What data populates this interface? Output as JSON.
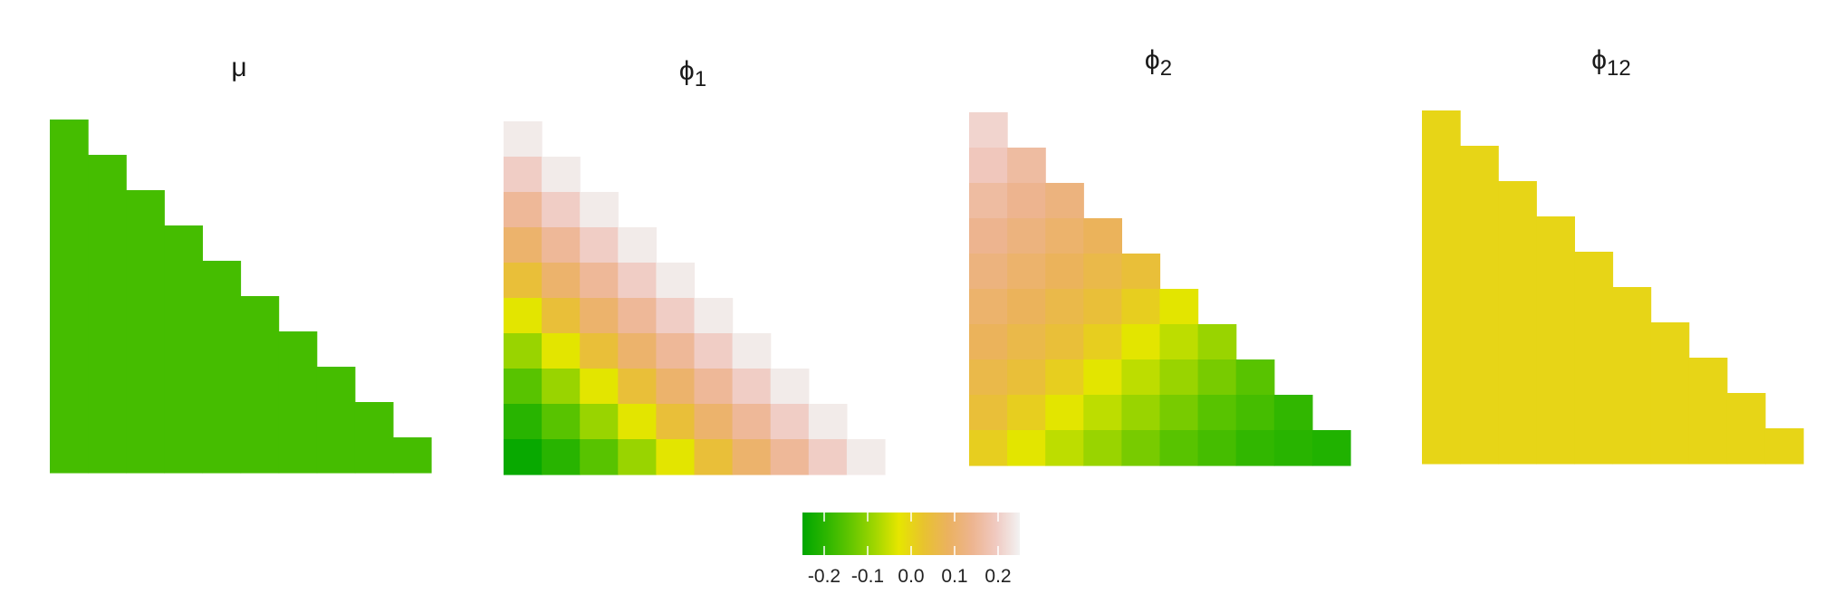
{
  "chart_data": {
    "type": "heatmap",
    "colorscale": {
      "range": [
        -0.25,
        0.25
      ],
      "tick_labels": [
        "-0.2",
        "-0.1",
        "0.0",
        "0.1",
        "0.2"
      ],
      "tick_values": [
        -0.2,
        -0.1,
        0.0,
        0.1,
        0.2
      ],
      "colors": [
        "#00A600",
        "#2DB600",
        "#63C600",
        "#A0D600",
        "#E6E600",
        "#E8C32E",
        "#EBB25E",
        "#EDB48E",
        "#F0C9C0",
        "#F2F2F2"
      ]
    },
    "panels": [
      {
        "title_base": "μ",
        "title_sub": "",
        "rows": [
          [
            -0.17
          ],
          [
            -0.17,
            -0.17
          ],
          [
            -0.17,
            -0.17,
            -0.17
          ],
          [
            -0.17,
            -0.17,
            -0.17,
            -0.17
          ],
          [
            -0.17,
            -0.17,
            -0.17,
            -0.17,
            -0.17
          ],
          [
            -0.17,
            -0.17,
            -0.17,
            -0.17,
            -0.17,
            -0.17
          ],
          [
            -0.17,
            -0.17,
            -0.17,
            -0.17,
            -0.17,
            -0.17,
            -0.17
          ],
          [
            -0.17,
            -0.17,
            -0.17,
            -0.17,
            -0.17,
            -0.17,
            -0.17,
            -0.17
          ],
          [
            -0.17,
            -0.17,
            -0.17,
            -0.17,
            -0.17,
            -0.17,
            -0.17,
            -0.17,
            -0.17
          ],
          [
            -0.17,
            -0.17,
            -0.17,
            -0.17,
            -0.17,
            -0.17,
            -0.17,
            -0.17,
            -0.17,
            -0.17
          ]
        ]
      },
      {
        "title_base": "ϕ",
        "title_sub": "1",
        "rows": [
          [
            0.24
          ],
          [
            0.2,
            0.24
          ],
          [
            0.15,
            0.2,
            0.24
          ],
          [
            0.1,
            0.15,
            0.2,
            0.24
          ],
          [
            0.04,
            0.1,
            0.15,
            0.2,
            0.24
          ],
          [
            -0.03,
            0.04,
            0.1,
            0.15,
            0.2,
            0.24
          ],
          [
            -0.09,
            -0.03,
            0.04,
            0.1,
            0.15,
            0.2,
            0.24
          ],
          [
            -0.15,
            -0.09,
            -0.03,
            0.04,
            0.1,
            0.15,
            0.2,
            0.24
          ],
          [
            -0.2,
            -0.15,
            -0.09,
            -0.03,
            0.04,
            0.1,
            0.15,
            0.2,
            0.24
          ],
          [
            -0.24,
            -0.2,
            -0.15,
            -0.09,
            -0.03,
            0.04,
            0.1,
            0.15,
            0.2,
            0.24
          ]
        ]
      },
      {
        "title_base": "ϕ",
        "title_sub": "2",
        "rows": [
          [
            0.21
          ],
          [
            0.19,
            0.16
          ],
          [
            0.16,
            0.14,
            0.12
          ],
          [
            0.14,
            0.12,
            0.1,
            0.08
          ],
          [
            0.12,
            0.1,
            0.08,
            0.06,
            0.04
          ],
          [
            0.1,
            0.08,
            0.06,
            0.04,
            0.01,
            -0.03
          ],
          [
            0.08,
            0.06,
            0.04,
            0.01,
            -0.03,
            -0.06,
            -0.09
          ],
          [
            0.06,
            0.04,
            0.01,
            -0.03,
            -0.06,
            -0.09,
            -0.12,
            -0.15
          ],
          [
            0.04,
            0.01,
            -0.03,
            -0.06,
            -0.09,
            -0.12,
            -0.15,
            -0.17,
            -0.19
          ],
          [
            0.01,
            -0.03,
            -0.06,
            -0.09,
            -0.12,
            -0.15,
            -0.17,
            -0.19,
            -0.2,
            -0.21
          ]
        ]
      },
      {
        "title_base": "ϕ",
        "title_sub": "12",
        "rows": [
          [
            0.0
          ],
          [
            0.0,
            0.0
          ],
          [
            0.0,
            0.0,
            0.0
          ],
          [
            0.0,
            0.0,
            0.0,
            0.0
          ],
          [
            0.0,
            0.0,
            0.0,
            0.0,
            0.0
          ],
          [
            0.0,
            0.0,
            0.0,
            0.0,
            0.0,
            0.0
          ],
          [
            0.0,
            0.0,
            0.0,
            0.0,
            0.0,
            0.0,
            0.0
          ],
          [
            0.0,
            0.0,
            0.0,
            0.0,
            0.0,
            0.0,
            0.0,
            0.0
          ],
          [
            0.0,
            0.0,
            0.0,
            0.0,
            0.0,
            0.0,
            0.0,
            0.0,
            0.0
          ],
          [
            0.0,
            0.0,
            0.0,
            0.0,
            0.0,
            0.0,
            0.0,
            0.0,
            0.0,
            0.0
          ]
        ]
      }
    ]
  }
}
